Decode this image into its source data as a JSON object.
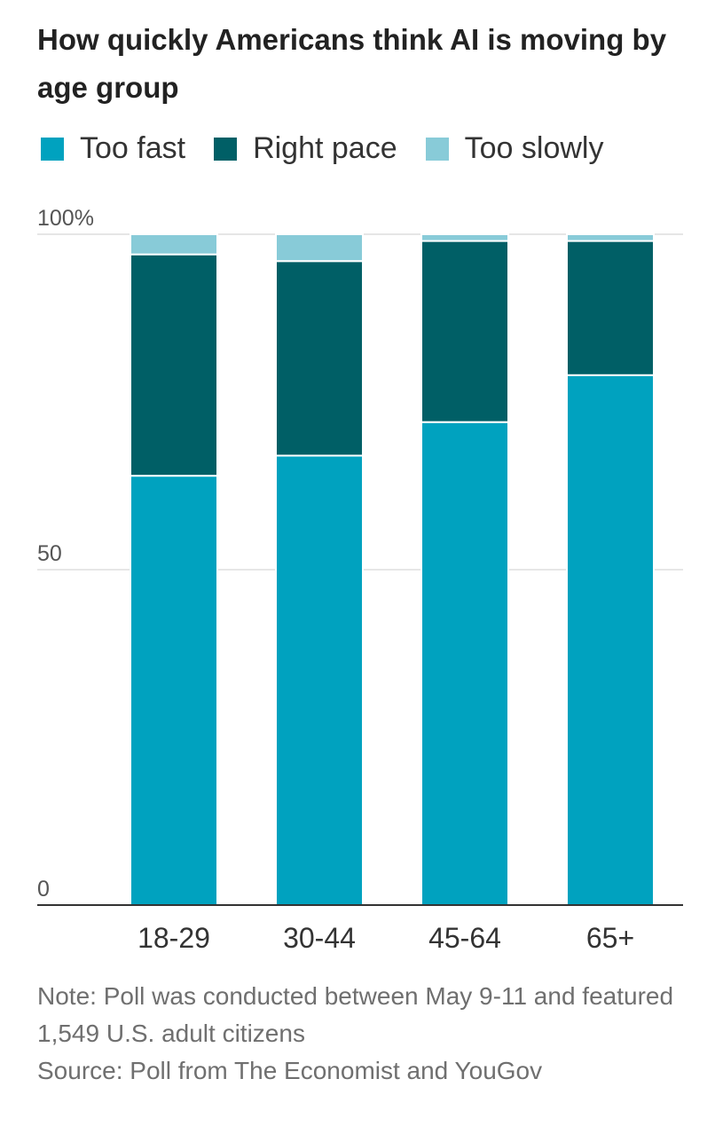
{
  "title": "How quickly Americans think AI is moving by age group",
  "legend": [
    {
      "label": "Too fast",
      "color": "#00a2bf"
    },
    {
      "label": "Right pace",
      "color": "#005f66"
    },
    {
      "label": "Too slowly",
      "color": "#88cbd8"
    }
  ],
  "chart_data": {
    "type": "bar",
    "stacked": true,
    "categories": [
      "18-29",
      "30-44",
      "45-64",
      "65+"
    ],
    "series": [
      {
        "name": "Too fast",
        "color": "#00a2bf",
        "values": [
          64,
          67,
          72,
          79
        ]
      },
      {
        "name": "Right pace",
        "color": "#005f66",
        "values": [
          33,
          29,
          27,
          20
        ]
      },
      {
        "name": "Too slowly",
        "color": "#88cbd8",
        "values": [
          3,
          4,
          1,
          1
        ]
      }
    ],
    "yticks": [
      {
        "value": 0,
        "label": "0"
      },
      {
        "value": 50,
        "label": "50"
      },
      {
        "value": 100,
        "label": "100%"
      }
    ],
    "ylim": [
      0,
      100
    ],
    "grid": true,
    "legend_position": "top-left"
  },
  "footer": {
    "note": "Note: Poll was conducted between May 9-11 and featured 1,549 U.S. adult citizens",
    "source": "Source: Poll from The Economist and YouGov"
  }
}
